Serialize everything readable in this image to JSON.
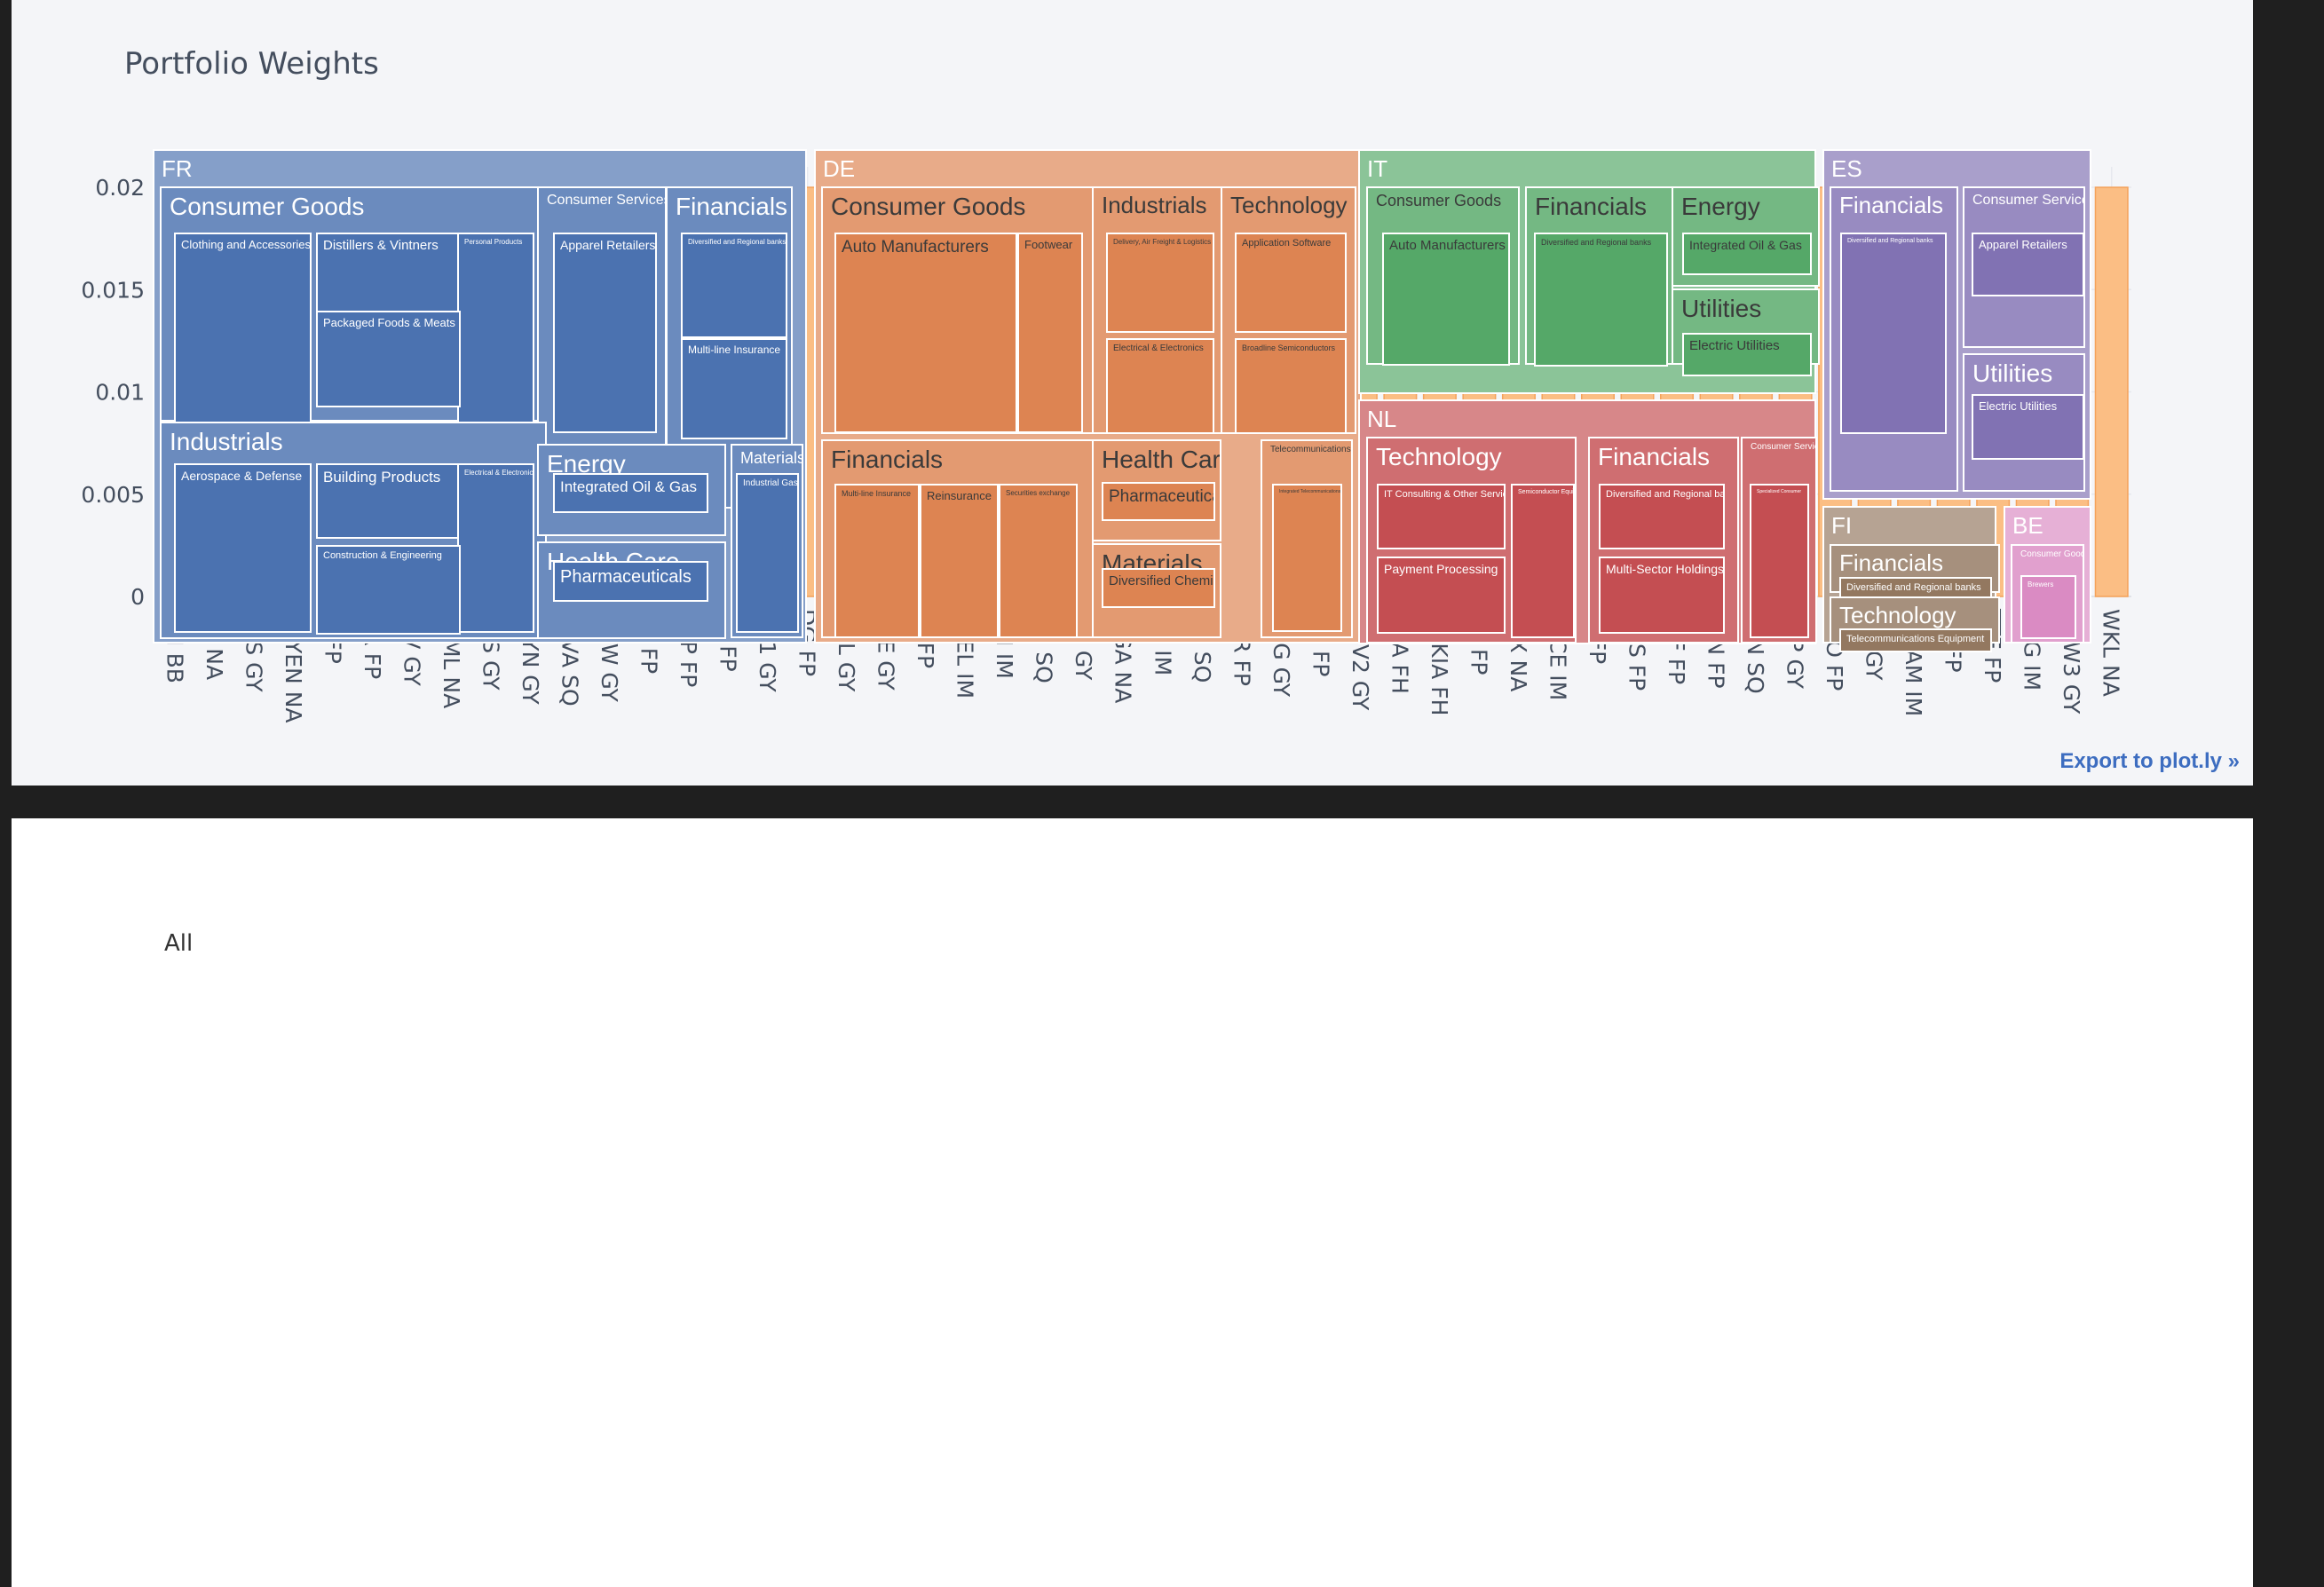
{
  "chart_panel": {
    "title": "Portfolio Weights",
    "export_label": "Export to plot.ly »"
  },
  "chart_data": {
    "type": "bar",
    "title": "Portfolio Weights",
    "xlabel": "",
    "ylabel": "",
    "ylim": [
      0,
      0.021
    ],
    "yticks": [
      0,
      0.005,
      0.01,
      0.015,
      0.02
    ],
    "ytick_labels": [
      "0",
      "0.005",
      "0.01",
      "0.015",
      "0.02"
    ],
    "grid": true,
    "bar_color": "#fbbe84",
    "bar_edge": "#f5a25a",
    "categories": [
      "ABI BB",
      "AD NA",
      "ADS GY",
      "ADYEN NA",
      "AI FP",
      "AIR FP",
      "ALV GY",
      "ASML NA",
      "BAS GY",
      "BAYN GY",
      "BBVA SQ",
      "BMW GY",
      "BN FP",
      "BNP FP",
      "CS FP",
      "DB1 GY",
      "DG FP",
      "DHL GY",
      "DTE GY",
      "EL FP",
      "ENEL IM",
      "ENI IM",
      "IBE SQ",
      "IFX GY",
      "INGA NA",
      "ISP IM",
      "ITX SQ",
      "KER FP",
      "MBG GY",
      "MC FP",
      "MUV2 GY",
      "NDA FH",
      "NOKIA FH",
      "OR FP",
      "PRX NA",
      "RACE IM",
      "RI FP",
      "RMS FP",
      "SAF FP",
      "SAN FP",
      "SAN SQ",
      "SAP GY",
      "SGO FP",
      "SIE GY",
      "STLAM IM",
      "SU FP",
      "TTE FP",
      "UCG IM",
      "VOW3 GY",
      "WKL NA"
    ],
    "values": [
      0.02,
      0.02,
      0.02,
      0.02,
      0.02,
      0.02,
      0.02,
      0.02,
      0.02,
      0.02,
      0.02,
      0.02,
      0.02,
      0.02,
      0.02,
      0.02,
      0.02,
      0.02,
      0.02,
      0.02,
      0.02,
      0.02,
      0.02,
      0.02,
      0.02,
      0.02,
      0.02,
      0.02,
      0.02,
      0.02,
      0.02,
      0.02,
      0.02,
      0.02,
      0.02,
      0.02,
      0.02,
      0.02,
      0.02,
      0.02,
      0.02,
      0.02,
      0.02,
      0.02,
      0.02,
      0.02,
      0.02,
      0.02,
      0.02,
      0.02
    ]
  },
  "treemap": {
    "root_label": "All",
    "colors": {
      "FR": "#4b72b0",
      "DE": "#dd8452",
      "IT": "#55a868",
      "NL": "#c44e52",
      "ES": "#8172b3",
      "FI": "#937860",
      "BE": "#da8bc3"
    },
    "countries": [
      {
        "label": "FR",
        "sectors": [
          {
            "label": "Consumer Goods",
            "industries": [
              "Clothing and Accessories",
              "Distillers & Vintners",
              "Personal Products",
              "Packaged Foods & Meats"
            ]
          },
          {
            "label": "Consumer Services",
            "industries": [
              "Apparel Retailers"
            ]
          },
          {
            "label": "Financials",
            "industries": [
              "Diversified and Regional banks",
              "Multi-line Insurance"
            ]
          },
          {
            "label": "Industrials",
            "industries": [
              "Aerospace & Defense",
              "Building Products",
              "Electrical & Electronics",
              "Construction & Engineering"
            ]
          },
          {
            "label": "Energy",
            "industries": [
              "Integrated Oil & Gas"
            ]
          },
          {
            "label": "Materials",
            "industries": [
              "Industrial Gases"
            ]
          },
          {
            "label": "Health Care",
            "industries": [
              "Pharmaceuticals"
            ]
          }
        ]
      },
      {
        "label": "DE",
        "sectors": [
          {
            "label": "Consumer Goods",
            "industries": [
              "Auto Manufacturers",
              "Footwear"
            ]
          },
          {
            "label": "Industrials",
            "industries": [
              "Delivery, Air Freight & Logistics",
              "Electrical & Electronics"
            ]
          },
          {
            "label": "Technology",
            "industries": [
              "Application Software",
              "Broadline Semiconductors"
            ]
          },
          {
            "label": "Financials",
            "industries": [
              "Multi-line Insurance",
              "Reinsurance",
              "Securities exchange"
            ]
          },
          {
            "label": "Health Care",
            "industries": [
              "Pharmaceuticals"
            ]
          },
          {
            "label": "Materials",
            "industries": [
              "Diversified Chemicals"
            ]
          },
          {
            "label": "Telecommunications",
            "industries": [
              "Integrated Telecommunications"
            ]
          }
        ]
      },
      {
        "label": "IT",
        "sectors": [
          {
            "label": "Consumer Goods",
            "industries": [
              "Auto Manufacturers"
            ]
          },
          {
            "label": "Financials",
            "industries": [
              "Diversified and Regional banks"
            ]
          },
          {
            "label": "Energy",
            "industries": [
              "Integrated Oil & Gas"
            ]
          },
          {
            "label": "Utilities",
            "industries": [
              "Electric Utilities"
            ]
          }
        ]
      },
      {
        "label": "NL",
        "sectors": [
          {
            "label": "Technology",
            "industries": [
              "IT Consulting & Other Services",
              "Semiconductor Equipment",
              "Payment Processing"
            ]
          },
          {
            "label": "Financials",
            "industries": [
              "Diversified and Regional banks",
              "Multi-Sector Holdings"
            ]
          },
          {
            "label": "Consumer Services",
            "industries": [
              "Specialized Consumer"
            ]
          }
        ]
      },
      {
        "label": "ES",
        "sectors": [
          {
            "label": "Financials",
            "industries": [
              "Diversified and Regional banks"
            ]
          },
          {
            "label": "Consumer Services",
            "industries": [
              "Apparel Retailers"
            ]
          },
          {
            "label": "Utilities",
            "industries": [
              "Electric Utilities"
            ]
          }
        ]
      },
      {
        "label": "FI",
        "sectors": [
          {
            "label": "Financials",
            "industries": [
              "Diversified and Regional banks"
            ]
          },
          {
            "label": "Technology",
            "industries": [
              "Telecommunications Equipment"
            ]
          }
        ]
      },
      {
        "label": "BE",
        "sectors": [
          {
            "label": "Consumer Goods",
            "industries": [
              "Brewers"
            ]
          }
        ]
      }
    ]
  }
}
